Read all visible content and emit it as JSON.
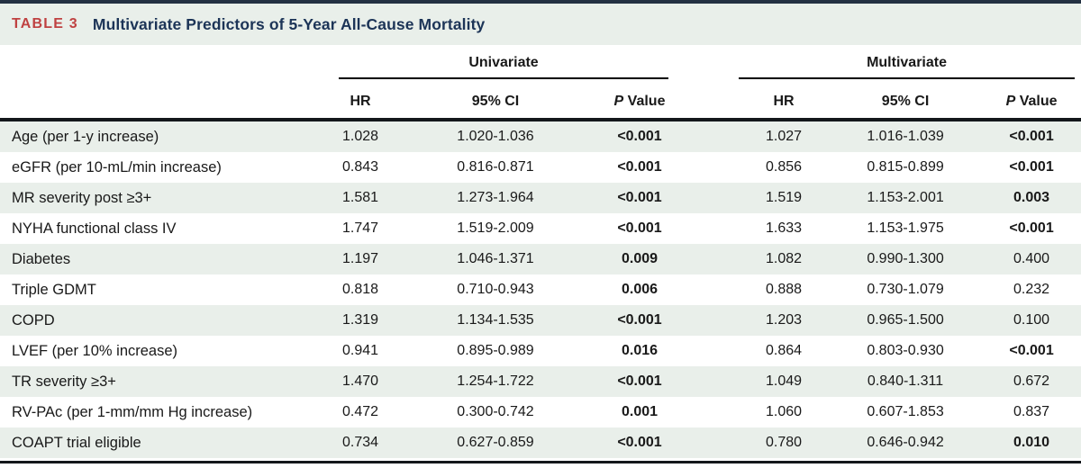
{
  "table": {
    "tag": "TABLE 3",
    "title": "Multivariate Predictors of 5-Year All-Cause Mortality",
    "groups": [
      {
        "label": "Univariate"
      },
      {
        "label": "Multivariate"
      }
    ],
    "columns": {
      "hr": "HR",
      "ci": "95% CI",
      "p_italic": "P",
      "p_rest": "Value"
    },
    "rows": [
      {
        "label": "Age (per 1-y increase)",
        "uni": {
          "hr": "1.028",
          "ci": "1.020-1.036",
          "p": "<0.001",
          "p_bold": true
        },
        "multi": {
          "hr": "1.027",
          "ci": "1.016-1.039",
          "p": "<0.001",
          "p_bold": true
        }
      },
      {
        "label": "eGFR (per 10-mL/min increase)",
        "uni": {
          "hr": "0.843",
          "ci": "0.816-0.871",
          "p": "<0.001",
          "p_bold": true
        },
        "multi": {
          "hr": "0.856",
          "ci": "0.815-0.899",
          "p": "<0.001",
          "p_bold": true
        }
      },
      {
        "label": "MR severity post ≥3+",
        "uni": {
          "hr": "1.581",
          "ci": "1.273-1.964",
          "p": "<0.001",
          "p_bold": true
        },
        "multi": {
          "hr": "1.519",
          "ci": "1.153-2.001",
          "p": "0.003",
          "p_bold": true
        }
      },
      {
        "label": "NYHA functional class IV",
        "uni": {
          "hr": "1.747",
          "ci": "1.519-2.009",
          "p": "<0.001",
          "p_bold": true
        },
        "multi": {
          "hr": "1.633",
          "ci": "1.153-1.975",
          "p": "<0.001",
          "p_bold": true
        }
      },
      {
        "label": "Diabetes",
        "uni": {
          "hr": "1.197",
          "ci": "1.046-1.371",
          "p": "0.009",
          "p_bold": true
        },
        "multi": {
          "hr": "1.082",
          "ci": "0.990-1.300",
          "p": "0.400",
          "p_bold": false
        }
      },
      {
        "label": "Triple GDMT",
        "uni": {
          "hr": "0.818",
          "ci": "0.710-0.943",
          "p": "0.006",
          "p_bold": true
        },
        "multi": {
          "hr": "0.888",
          "ci": "0.730-1.079",
          "p": "0.232",
          "p_bold": false
        }
      },
      {
        "label": "COPD",
        "uni": {
          "hr": "1.319",
          "ci": "1.134-1.535",
          "p": "<0.001",
          "p_bold": true
        },
        "multi": {
          "hr": "1.203",
          "ci": "0.965-1.500",
          "p": "0.100",
          "p_bold": false
        }
      },
      {
        "label": "LVEF (per 10% increase)",
        "uni": {
          "hr": "0.941",
          "ci": "0.895-0.989",
          "p": "0.016",
          "p_bold": true
        },
        "multi": {
          "hr": "0.864",
          "ci": "0.803-0.930",
          "p": "<0.001",
          "p_bold": true
        }
      },
      {
        "label": "TR severity ≥3+",
        "uni": {
          "hr": "1.470",
          "ci": "1.254-1.722",
          "p": "<0.001",
          "p_bold": true
        },
        "multi": {
          "hr": "1.049",
          "ci": "0.840-1.311",
          "p": "0.672",
          "p_bold": false
        }
      },
      {
        "label": "RV-PAc (per 1-mm/mm Hg increase)",
        "uni": {
          "hr": "0.472",
          "ci": "0.300-0.742",
          "p": "0.001",
          "p_bold": true
        },
        "multi": {
          "hr": "1.060",
          "ci": "0.607-1.853",
          "p": "0.837",
          "p_bold": false
        }
      },
      {
        "label": "COAPT trial eligible",
        "uni": {
          "hr": "0.734",
          "ci": "0.627-0.859",
          "p": "<0.001",
          "p_bold": true
        },
        "multi": {
          "hr": "0.780",
          "ci": "0.646-0.942",
          "p": "0.010",
          "p_bold": true
        }
      }
    ]
  },
  "colors": {
    "accent_red": "#bf4141",
    "title_navy": "#1c3457",
    "stripe_green": "#e9efea",
    "rule_dark": "#13171b",
    "top_border": "#233142"
  }
}
